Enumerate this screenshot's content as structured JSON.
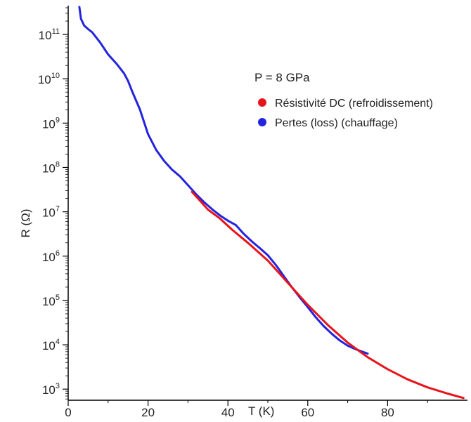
{
  "chart_data": {
    "type": "line",
    "title": "",
    "annotation": "P = 8 GPa",
    "xlabel": "T (K)",
    "ylabel": "R (Ω)",
    "xlim": [
      0,
      100
    ],
    "ylim_log10": [
      2.75,
      11.65
    ],
    "yscale": "log",
    "x_ticks": [
      0,
      20,
      40,
      60,
      80
    ],
    "x_tick_labels": [
      "0",
      "20",
      "40",
      "60",
      "80"
    ],
    "y_ticks": [
      {
        "base": "10",
        "exp": "3"
      },
      {
        "base": "10",
        "exp": "4"
      },
      {
        "base": "10",
        "exp": "5"
      },
      {
        "base": "10",
        "exp": "6"
      },
      {
        "base": "10",
        "exp": "7"
      },
      {
        "base": "10",
        "exp": "8"
      },
      {
        "base": "10",
        "exp": "9"
      },
      {
        "base": "10",
        "exp": "10"
      },
      {
        "base": "10",
        "exp": "11"
      }
    ],
    "legend": {
      "position": "top-right"
    },
    "series": [
      {
        "name": "Résistivité DC (refroidissement)",
        "color": "#e8141b",
        "x": [
          31,
          33,
          35,
          38,
          41,
          45,
          50,
          55,
          60,
          65,
          70,
          75,
          80,
          85,
          90,
          95,
          99
        ],
        "log10_y": [
          7.45,
          7.25,
          7.05,
          6.85,
          6.6,
          6.3,
          5.9,
          5.4,
          4.9,
          4.45,
          4.05,
          3.72,
          3.45,
          3.22,
          3.04,
          2.9,
          2.8
        ]
      },
      {
        "name": "Pertes (loss) (chauffage)",
        "color": "#2323e0",
        "x": [
          2.8,
          3.2,
          4,
          5,
          6,
          8,
          10,
          12,
          14,
          15,
          16,
          18,
          20,
          22,
          24,
          26,
          28,
          30,
          32,
          34,
          36,
          38,
          40,
          42,
          44,
          46,
          48,
          50,
          52,
          54,
          56,
          58,
          60,
          62,
          64,
          66,
          68,
          70,
          72,
          75
        ],
        "log10_y": [
          11.62,
          11.35,
          11.2,
          11.12,
          11.05,
          10.82,
          10.55,
          10.35,
          10.12,
          9.95,
          9.72,
          9.3,
          8.75,
          8.4,
          8.15,
          7.95,
          7.8,
          7.6,
          7.4,
          7.22,
          7.06,
          6.92,
          6.8,
          6.7,
          6.5,
          6.33,
          6.18,
          6.02,
          5.8,
          5.55,
          5.3,
          5.07,
          4.85,
          4.62,
          4.42,
          4.25,
          4.1,
          3.98,
          3.9,
          3.8
        ]
      }
    ]
  }
}
